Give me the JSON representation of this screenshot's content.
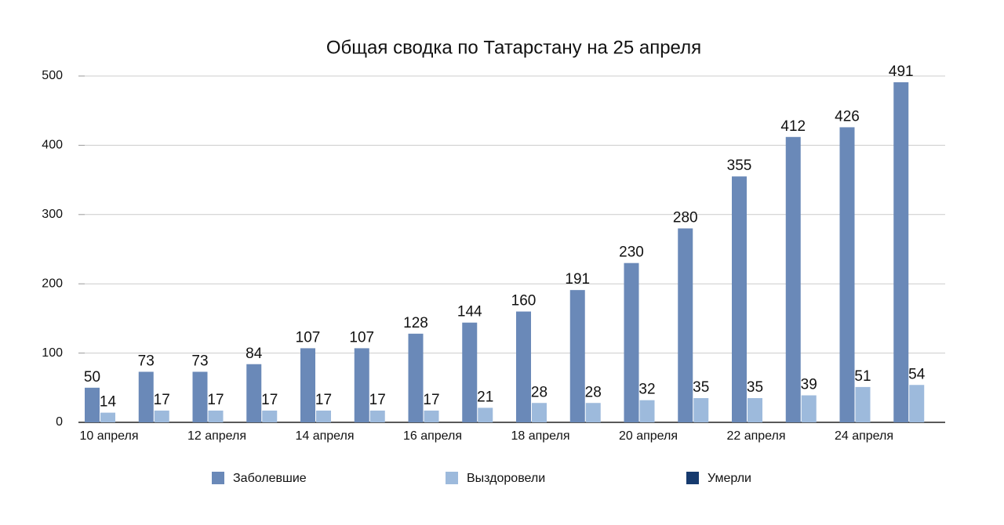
{
  "chart_data": {
    "type": "bar",
    "title": "Общая сводка по Татарстану на 25 апреля",
    "categories": [
      "10 апреля",
      null,
      "12 апреля",
      null,
      "14 апреля",
      null,
      "16 апреля",
      null,
      "18 апреля",
      null,
      "20 апреля",
      null,
      "22 апреля",
      null,
      "24 апреля",
      null
    ],
    "series": [
      {
        "name": "Заболевшие",
        "color": "#6a89b8",
        "values": [
          50,
          73,
          73,
          84,
          107,
          107,
          128,
          144,
          160,
          191,
          230,
          280,
          355,
          412,
          426,
          491
        ]
      },
      {
        "name": "Выздоровели",
        "color": "#9dbadc",
        "values": [
          14,
          17,
          17,
          17,
          17,
          17,
          17,
          21,
          28,
          28,
          32,
          35,
          35,
          39,
          51,
          54
        ]
      },
      {
        "name": "Умерли",
        "color": "#163a6e",
        "values": [
          null,
          null,
          null,
          null,
          null,
          null,
          null,
          null,
          null,
          null,
          null,
          null,
          null,
          null,
          null,
          null
        ]
      }
    ],
    "ylim": [
      0,
      500
    ],
    "yticks": [
      0,
      100,
      200,
      300,
      400,
      500
    ],
    "grid": true,
    "legend": "bottom"
  }
}
